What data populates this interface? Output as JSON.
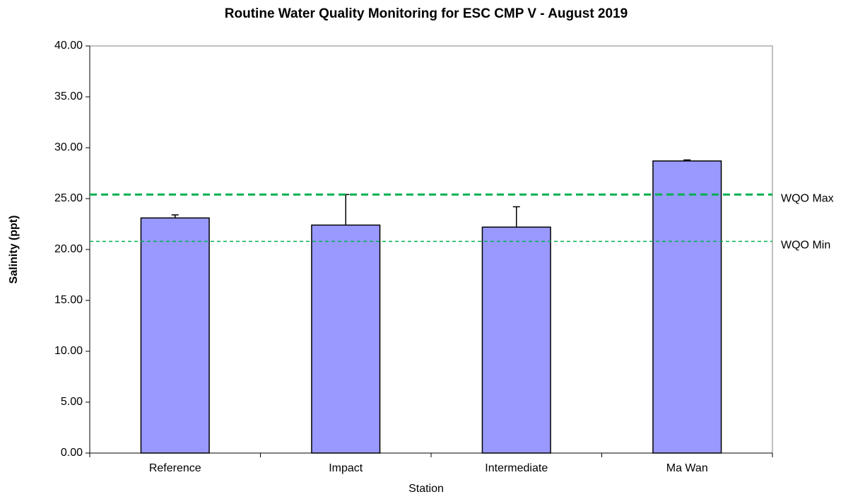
{
  "chart_data": {
    "type": "bar",
    "title": "Routine Water Quality Monitoring for ESC CMP V - August 2019",
    "xlabel": "Station",
    "ylabel": "Salinity (ppt)",
    "categories": [
      "Reference",
      "Impact",
      "Intermediate",
      "Ma Wan"
    ],
    "values": [
      23.1,
      22.4,
      22.2,
      28.7
    ],
    "errors": [
      0.3,
      3.0,
      2.0,
      0.1
    ],
    "color": "#9999ff",
    "ylim": [
      0,
      40
    ],
    "yticks": [
      {
        "value": 0,
        "label": "0.00"
      },
      {
        "value": 5,
        "label": "5.00"
      },
      {
        "value": 10,
        "label": "10.00"
      },
      {
        "value": 15,
        "label": "15.00"
      },
      {
        "value": 20,
        "label": "20.00"
      },
      {
        "value": 25,
        "label": "25.00"
      },
      {
        "value": 30,
        "label": "30.00"
      },
      {
        "value": 35,
        "label": "35.00"
      },
      {
        "value": 40,
        "label": "40.00"
      }
    ],
    "reference_lines": [
      {
        "name": "WQO Max",
        "value": 25.4,
        "color": "#00b050"
      },
      {
        "name": "WQO Min",
        "value": 20.8,
        "color": "#00b050"
      }
    ]
  }
}
